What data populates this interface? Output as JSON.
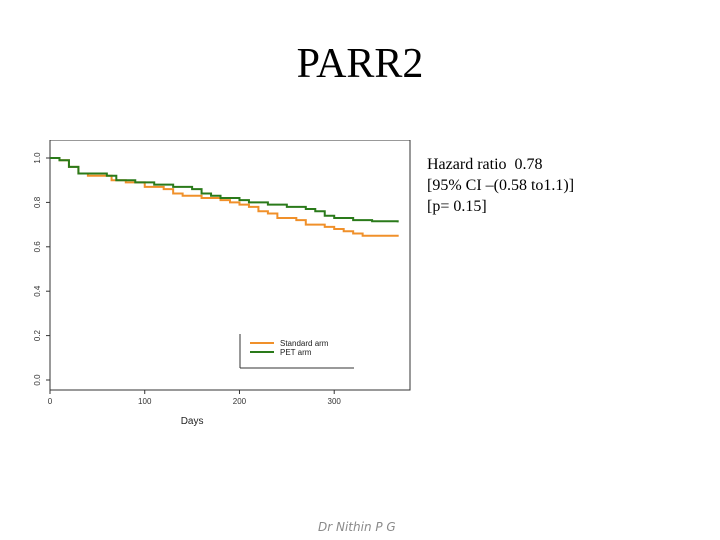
{
  "slide": {
    "title": "PARR2",
    "stats": [
      "Hazard ratio  0.78",
      "[95% CI –(0.58 to1.1)]",
      "[p= 0.15]"
    ],
    "footer": "Dr Nithin P G"
  },
  "chart_data": {
    "type": "line",
    "xlabel": "Days",
    "ylabel": "",
    "xlim": [
      0,
      380
    ],
    "ylim": [
      0,
      1.0
    ],
    "x_ticks": [
      0,
      100,
      200,
      300
    ],
    "y_ticks": [
      0.0,
      0.2,
      0.4,
      0.6,
      0.8,
      1.0
    ],
    "y_tick_labels": [
      "0.0",
      "0.2",
      "0.4",
      "0.6",
      "0.8",
      "1.0"
    ],
    "grid": false,
    "legend_position": "bottom-right",
    "series": [
      {
        "name": "Standard arm",
        "color": "#f0902a",
        "points": [
          [
            0,
            1.0
          ],
          [
            10,
            0.99
          ],
          [
            20,
            0.96
          ],
          [
            30,
            0.93
          ],
          [
            40,
            0.92
          ],
          [
            60,
            0.92
          ],
          [
            65,
            0.9
          ],
          [
            80,
            0.89
          ],
          [
            100,
            0.87
          ],
          [
            120,
            0.86
          ],
          [
            130,
            0.84
          ],
          [
            140,
            0.83
          ],
          [
            160,
            0.82
          ],
          [
            180,
            0.81
          ],
          [
            190,
            0.8
          ],
          [
            200,
            0.79
          ],
          [
            210,
            0.78
          ],
          [
            220,
            0.76
          ],
          [
            230,
            0.75
          ],
          [
            240,
            0.73
          ],
          [
            260,
            0.72
          ],
          [
            270,
            0.7
          ],
          [
            290,
            0.69
          ],
          [
            300,
            0.68
          ],
          [
            310,
            0.67
          ],
          [
            320,
            0.66
          ],
          [
            330,
            0.65
          ],
          [
            350,
            0.65
          ],
          [
            367,
            0.645
          ]
        ]
      },
      {
        "name": "PET arm",
        "color": "#2a7a1a",
        "points": [
          [
            0,
            1.0
          ],
          [
            10,
            0.99
          ],
          [
            20,
            0.96
          ],
          [
            30,
            0.93
          ],
          [
            60,
            0.92
          ],
          [
            70,
            0.9
          ],
          [
            90,
            0.89
          ],
          [
            110,
            0.88
          ],
          [
            130,
            0.87
          ],
          [
            150,
            0.86
          ],
          [
            160,
            0.84
          ],
          [
            170,
            0.83
          ],
          [
            180,
            0.82
          ],
          [
            200,
            0.81
          ],
          [
            210,
            0.8
          ],
          [
            230,
            0.79
          ],
          [
            250,
            0.78
          ],
          [
            270,
            0.77
          ],
          [
            280,
            0.76
          ],
          [
            290,
            0.74
          ],
          [
            300,
            0.73
          ],
          [
            320,
            0.72
          ],
          [
            340,
            0.715
          ],
          [
            367,
            0.71
          ]
        ]
      }
    ]
  }
}
